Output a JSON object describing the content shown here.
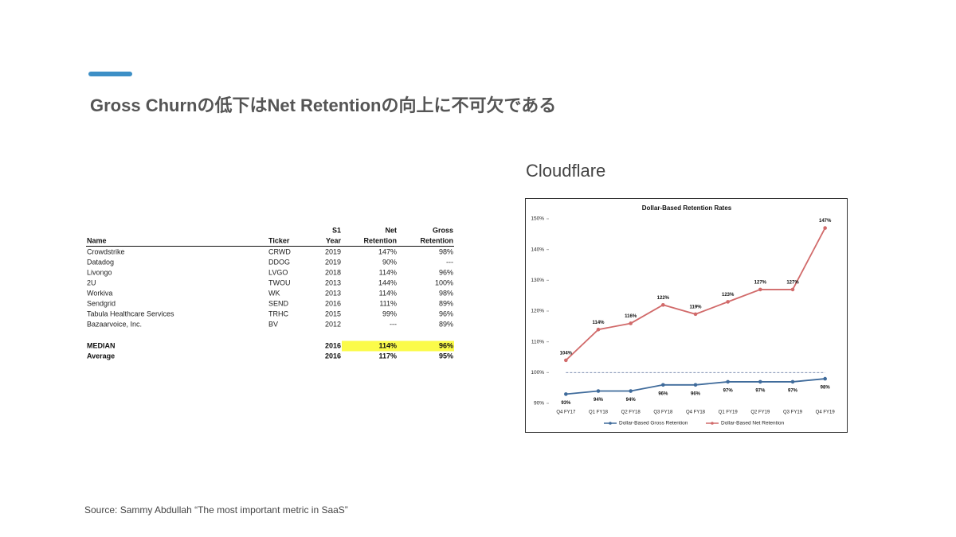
{
  "header": {
    "title": "Gross Churnの低下はNet Retentionの向上に不可欠である"
  },
  "table": {
    "columns": [
      [
        "Name"
      ],
      [
        "Ticker"
      ],
      [
        "S1",
        "Year"
      ],
      [
        "Net",
        "Retention"
      ],
      [
        "Gross",
        "Retention"
      ]
    ],
    "rows": [
      [
        "Crowdstrike",
        "CRWD",
        "2019",
        "147%",
        "98%"
      ],
      [
        "Datadog",
        "DDOG",
        "2019",
        "90%",
        "---"
      ],
      [
        "Livongo",
        "LVGO",
        "2018",
        "114%",
        "96%"
      ],
      [
        "2U",
        "TWOU",
        "2013",
        "144%",
        "100%"
      ],
      [
        "Workiva",
        "WK",
        "2013",
        "114%",
        "98%"
      ],
      [
        "Sendgrid",
        "SEND",
        "2016",
        "111%",
        "89%"
      ],
      [
        "Tabula Healthcare Services",
        "TRHC",
        "2015",
        "99%",
        "96%"
      ],
      [
        "Bazaarvoice, Inc.",
        "BV",
        "2012",
        "---",
        "89%"
      ]
    ],
    "summary": [
      {
        "label": "MEDIAN",
        "year": "2016",
        "net": "114%",
        "gross": "96%"
      },
      {
        "label": "Average",
        "year": "2016",
        "net": "117%",
        "gross": "95%"
      }
    ]
  },
  "chart_heading": "Cloudflare",
  "chart_data": {
    "type": "line",
    "title": "Dollar-Based Retention Rates",
    "categories": [
      "Q4 FY17",
      "Q1 FY18",
      "Q2 FY18",
      "Q3 FY18",
      "Q4 FY18",
      "Q1 FY19",
      "Q2 FY19",
      "Q3 FY19",
      "Q4 FY19"
    ],
    "series": [
      {
        "name": "Dollar-Based Gross Retention",
        "color": "#3f6b9b",
        "values": [
          93,
          94,
          94,
          96,
          96,
          97,
          97,
          97,
          98
        ],
        "value_labels": [
          "93%",
          "94%",
          "94%",
          "96%",
          "96%",
          "97%",
          "97%",
          "97%",
          "98%"
        ]
      },
      {
        "name": "Dollar-Based Net Retention",
        "color": "#d16a6a",
        "values": [
          104,
          114,
          116,
          122,
          119,
          123,
          127,
          127,
          147
        ],
        "value_labels": [
          "104%",
          "114%",
          "116%",
          "122%",
          "119%",
          "123%",
          "127%",
          "127%",
          "147%"
        ]
      }
    ],
    "ylim": [
      90,
      150
    ],
    "yticks": [
      {
        "value": 90,
        "label": "90%"
      },
      {
        "value": 100,
        "label": "100%"
      },
      {
        "value": 110,
        "label": "110%"
      },
      {
        "value": 120,
        "label": "120%"
      },
      {
        "value": 130,
        "label": "130%"
      },
      {
        "value": 140,
        "label": "140%"
      },
      {
        "value": 150,
        "label": "150%"
      }
    ],
    "reference_line": 100,
    "legend": "bottom"
  },
  "source": "Source: Sammy Abdullah “The most important metric in SaaS”"
}
